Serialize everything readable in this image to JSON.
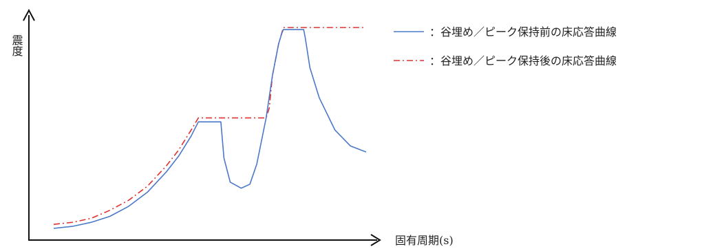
{
  "chart_data": {
    "type": "line",
    "xlabel": "固有周期(s)",
    "ylabel": "震度",
    "x_range": [
      0,
      1
    ],
    "y_range": [
      0,
      1
    ],
    "grid": false,
    "legend_position": "right",
    "series": [
      {
        "name": "：谷埋め／ピーク保持前の床応答曲線",
        "style": "solid",
        "color": "#4a78c8",
        "x": [
          0.0,
          0.06,
          0.12,
          0.18,
          0.24,
          0.3,
          0.36,
          0.4,
          0.44,
          0.463,
          0.5,
          0.535,
          0.545,
          0.565,
          0.6,
          0.628,
          0.65,
          0.68,
          0.7,
          0.72,
          0.73,
          0.735,
          0.8,
          0.805,
          0.82,
          0.85,
          0.9,
          0.95,
          1.0
        ],
        "y": [
          0.0,
          0.01,
          0.03,
          0.06,
          0.11,
          0.18,
          0.28,
          0.36,
          0.46,
          0.53,
          0.53,
          0.53,
          0.35,
          0.23,
          0.2,
          0.22,
          0.32,
          0.55,
          0.76,
          0.92,
          0.97,
          0.99,
          0.99,
          0.95,
          0.8,
          0.65,
          0.49,
          0.41,
          0.38
        ]
      },
      {
        "name": "：谷埋め／ピーク保持後の床応答曲線",
        "style": "dashdot",
        "color": "#e03030",
        "x": [
          0.0,
          0.06,
          0.12,
          0.18,
          0.24,
          0.3,
          0.36,
          0.4,
          0.44,
          0.463,
          0.55,
          0.68,
          0.69,
          0.7,
          0.72,
          0.735,
          1.0
        ],
        "y": [
          0.02,
          0.03,
          0.05,
          0.09,
          0.14,
          0.21,
          0.31,
          0.39,
          0.49,
          0.55,
          0.55,
          0.55,
          0.6,
          0.76,
          0.92,
          1.0,
          1.0
        ]
      }
    ]
  }
}
